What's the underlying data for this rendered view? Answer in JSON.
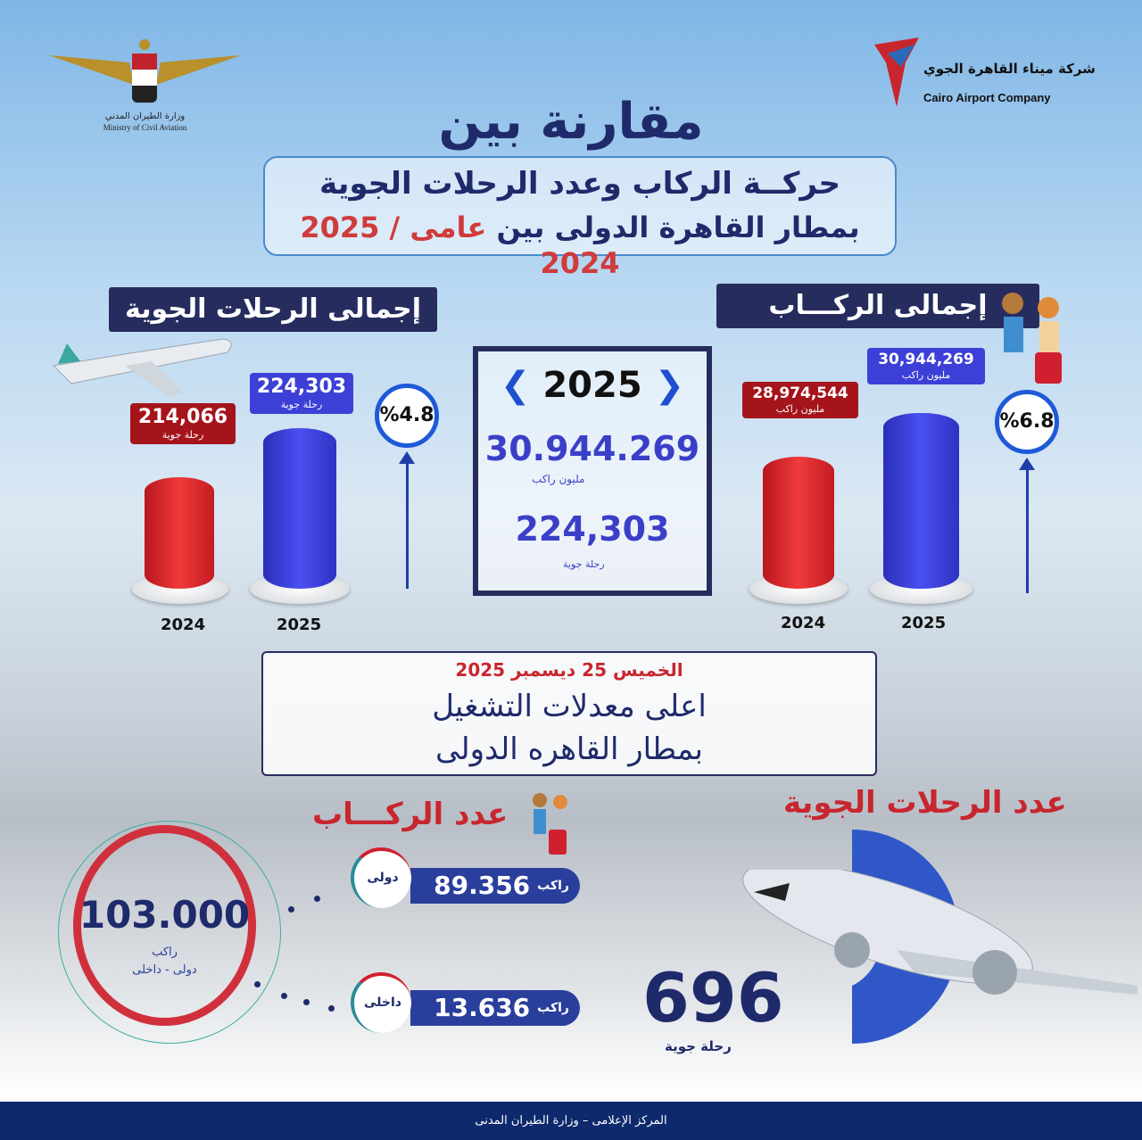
{
  "logos": {
    "ministry_ar": "وزارة الطيران المدني",
    "ministry_en": "Ministry of Civil Aviation",
    "company_ar": "شركة ميناء القاهرة الجوي",
    "company_en": "Cairo Airport Company"
  },
  "header": {
    "title": "مقارنة بين",
    "subtitle_line1": "حركــة الركاب وعدد الرحلات الجوية",
    "subtitle_line2_a": "بمطار القاهرة الدولى بين",
    "subtitle_line2_b": "عامى",
    "subtitle_line2_c": "2025 / 2024"
  },
  "flights_section": {
    "heading": "إجمالى الرحلات الجوية",
    "bars": [
      {
        "year": "2024",
        "value": "214,066",
        "unit": "رحلة جوية",
        "color": "#e0282e"
      },
      {
        "year": "2025",
        "value": "224,303",
        "unit": "رحلة جوية",
        "color": "#3c40d6"
      }
    ],
    "growth": "%4.8"
  },
  "passengers_section": {
    "heading": "إجمالى الركـــاب",
    "bars": [
      {
        "year": "2024",
        "value": "28,974,544",
        "unit": "مليون راكب",
        "color": "#e0282e"
      },
      {
        "year": "2025",
        "value": "30,944,269",
        "unit": "مليون راكب",
        "color": "#3c40d6"
      }
    ],
    "growth": "%6.8"
  },
  "center_box": {
    "year": "2025",
    "passengers": "30.944.269",
    "passengers_unit": "مليون راكب",
    "flights": "224,303",
    "flights_unit": "رحلة جوية"
  },
  "highlight": {
    "date": "الخميس 25 ديسمبر 2025",
    "line1": "اعلى معدلات التشغيل",
    "line2": "بمطار القاهره الدولى"
  },
  "day_passengers": {
    "heading": "عدد الركـــاب",
    "total": "103.000",
    "total_unit": "راكب",
    "total_label": "دولى - داخلى",
    "international": {
      "label": "دولى",
      "value": "89.356",
      "unit": "راكب"
    },
    "domestic": {
      "label": "داخلى",
      "value": "13.636",
      "unit": "راكب"
    }
  },
  "day_flights": {
    "heading": "عدد الرحلات الجوية",
    "value": "696",
    "unit": "رحلة جوية"
  },
  "footer": {
    "text": "المركز الإعلامى – وزارة الطيران المدنى"
  }
}
